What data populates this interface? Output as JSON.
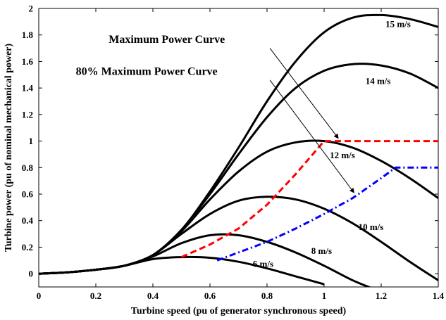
{
  "chart_data": {
    "type": "line",
    "xlabel": "Turbine speed (pu of generator synchronous speed)",
    "ylabel": "Turbine power (pu of nominal mechanical power)",
    "xlim": [
      0,
      1.4
    ],
    "ylim": [
      -0.1,
      2.0
    ],
    "x_ticks": [
      "0",
      "0.2",
      "0.4",
      "0.6",
      "0.8",
      "1",
      "1.2",
      "1.4"
    ],
    "x_tick_values": [
      0,
      0.2,
      0.4,
      0.6,
      0.8,
      1.0,
      1.2,
      1.4
    ],
    "y_ticks": [
      "0",
      "0.2",
      "0.4",
      "0.6",
      "0.8",
      "1",
      "1.2",
      "1.4",
      "1.6",
      "1.8",
      "2"
    ],
    "y_tick_values": [
      0,
      0.2,
      0.4,
      0.6,
      0.8,
      1.0,
      1.2,
      1.4,
      1.6,
      1.8,
      2.0
    ],
    "grid": false,
    "series": [
      {
        "name": "15 m/s",
        "color": "#000000",
        "style": "solid",
        "x": [
          0,
          0.1,
          0.2,
          0.3,
          0.4,
          0.5,
          0.6,
          0.7,
          0.8,
          0.9,
          1.0,
          1.1,
          1.2,
          1.3,
          1.4
        ],
        "y": [
          0,
          0.01,
          0.03,
          0.06,
          0.14,
          0.33,
          0.62,
          0.95,
          1.3,
          1.6,
          1.82,
          1.93,
          1.95,
          1.92,
          1.86
        ]
      },
      {
        "name": "14 m/s",
        "color": "#000000",
        "style": "solid",
        "x": [
          0,
          0.1,
          0.2,
          0.3,
          0.4,
          0.5,
          0.6,
          0.7,
          0.8,
          0.9,
          1.0,
          1.1,
          1.2,
          1.3,
          1.4
        ],
        "y": [
          0,
          0.01,
          0.03,
          0.06,
          0.14,
          0.33,
          0.6,
          0.9,
          1.18,
          1.4,
          1.53,
          1.58,
          1.57,
          1.51,
          1.4
        ]
      },
      {
        "name": "12 m/s",
        "color": "#000000",
        "style": "solid",
        "x": [
          0,
          0.1,
          0.2,
          0.3,
          0.4,
          0.5,
          0.6,
          0.7,
          0.8,
          0.9,
          1.0,
          1.1,
          1.2,
          1.3,
          1.4
        ],
        "y": [
          0,
          0.01,
          0.03,
          0.06,
          0.14,
          0.32,
          0.56,
          0.77,
          0.92,
          0.99,
          1.0,
          0.95,
          0.85,
          0.72,
          0.57
        ]
      },
      {
        "name": "10 m/s",
        "color": "#000000",
        "style": "solid",
        "x": [
          0,
          0.1,
          0.2,
          0.3,
          0.4,
          0.5,
          0.6,
          0.7,
          0.8,
          0.9,
          1.0,
          1.1,
          1.2,
          1.3,
          1.4
        ],
        "y": [
          0,
          0.01,
          0.03,
          0.06,
          0.14,
          0.3,
          0.45,
          0.55,
          0.58,
          0.56,
          0.49,
          0.38,
          0.24,
          0.09,
          -0.05
        ]
      },
      {
        "name": "8 m/s",
        "color": "#000000",
        "style": "solid",
        "x": [
          0,
          0.1,
          0.2,
          0.3,
          0.4,
          0.5,
          0.6,
          0.7,
          0.8,
          0.9,
          1.0,
          1.1,
          1.18
        ],
        "y": [
          0,
          0.01,
          0.03,
          0.06,
          0.13,
          0.23,
          0.29,
          0.29,
          0.24,
          0.16,
          0.06,
          -0.05,
          -0.12
        ]
      },
      {
        "name": "6 m/s",
        "color": "#000000",
        "style": "solid",
        "x": [
          0,
          0.1,
          0.2,
          0.3,
          0.4,
          0.5,
          0.6,
          0.7,
          0.8,
          0.9,
          1.0
        ],
        "y": [
          0,
          0.01,
          0.03,
          0.06,
          0.11,
          0.125,
          0.12,
          0.09,
          0.04,
          -0.02,
          -0.08
        ]
      },
      {
        "name": "Maximum Power Curve",
        "color": "#ff0000",
        "style": "dashed",
        "x": [
          0.5,
          0.6,
          0.7,
          0.8,
          0.9,
          1.0,
          1.1,
          1.2,
          1.3,
          1.4
        ],
        "y": [
          0.125,
          0.22,
          0.34,
          0.52,
          0.75,
          1.0,
          1.0,
          1.0,
          1.0,
          1.0
        ]
      },
      {
        "name": "80% Maximum Power Curve",
        "color": "#0000ff",
        "style": "dashdot",
        "x": [
          0.625,
          0.7,
          0.8,
          0.9,
          1.0,
          1.1,
          1.2,
          1.25,
          1.3,
          1.4
        ],
        "y": [
          0.1,
          0.16,
          0.24,
          0.34,
          0.45,
          0.57,
          0.72,
          0.8,
          0.8,
          0.8
        ]
      }
    ],
    "curve_labels": [
      {
        "text": "15 m/s",
        "x": 1.215,
        "y": 1.86
      },
      {
        "text": "14 m/s",
        "x": 1.145,
        "y": 1.43
      },
      {
        "text": "12 m/s",
        "x": 1.02,
        "y": 0.87
      },
      {
        "text": "10 m/s",
        "x": 1.12,
        "y": 0.33
      },
      {
        "text": "8 m/s",
        "x": 0.955,
        "y": 0.15
      },
      {
        "text": "6 m/s",
        "x": 0.75,
        "y": 0.05
      }
    ],
    "annotations": [
      {
        "text": "Maximum Power Curve",
        "text_x": 0.245,
        "text_y": 1.74,
        "arrow_from": [
          0.81,
          1.7
        ],
        "arrow_to": [
          1.05,
          1.02
        ]
      },
      {
        "text": "80% Maximum Power Curve",
        "text_x": 0.13,
        "text_y": 1.5,
        "arrow_from": [
          0.81,
          1.46
        ],
        "arrow_to": [
          1.105,
          0.61
        ]
      }
    ]
  }
}
